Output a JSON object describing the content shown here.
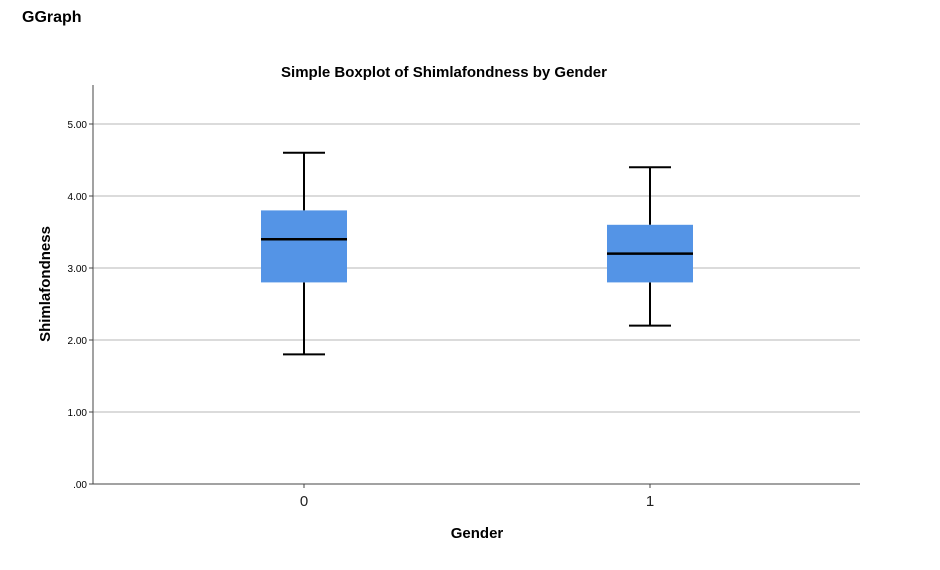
{
  "page": {
    "heading": "GGraph"
  },
  "chart_data": {
    "type": "boxplot",
    "title": "Simple Boxplot of Shimlafondness by Gender",
    "xlabel": "Gender",
    "ylabel": "Shimlafondness",
    "ylim": [
      0,
      5.5
    ],
    "yticks": [
      0,
      1,
      2,
      3,
      4,
      5
    ],
    "ytick_labels": [
      ".00",
      "1.00",
      "2.00",
      "3.00",
      "4.00",
      "5.00"
    ],
    "grid": true,
    "box_color": "#5494e6",
    "categories": [
      "0",
      "1"
    ],
    "boxes": [
      {
        "category": "0",
        "min": 1.8,
        "q1": 2.8,
        "median": 3.4,
        "q3": 3.8,
        "max": 4.6
      },
      {
        "category": "1",
        "min": 2.2,
        "q1": 2.8,
        "median": 3.2,
        "q3": 3.6,
        "max": 4.4
      }
    ]
  }
}
